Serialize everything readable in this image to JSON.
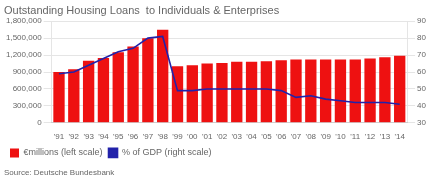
{
  "chart_data": {
    "type": "bar",
    "title": "Outstanding Housing Loans  to Individuals & Enterprises",
    "categories": [
      "'91",
      "'92",
      "'93",
      "'94",
      "'95",
      "'96",
      "'97",
      "'98",
      "'99",
      "'00",
      "'01",
      "'02",
      "'03",
      "'04",
      "'05",
      "'06",
      "'07",
      "'08",
      "'09",
      "'10",
      "'11",
      "'12",
      "'13",
      "'14"
    ],
    "series": [
      {
        "name": "€millions (left scale)",
        "type": "bar",
        "color": "#ee1111",
        "values": [
          900000,
          950000,
          1100000,
          1150000,
          1250000,
          1350000,
          1500000,
          1650000,
          1000000,
          1020000,
          1050000,
          1060000,
          1080000,
          1080000,
          1090000,
          1110000,
          1120000,
          1120000,
          1120000,
          1120000,
          1120000,
          1140000,
          1160000,
          1190000
        ]
      },
      {
        "name": "% of GDP (right scale)",
        "type": "line",
        "axis": "y2",
        "color": "#2222aa",
        "values": [
          59,
          60,
          64,
          68,
          72,
          74,
          80,
          81,
          49,
          49,
          50,
          50,
          50,
          50,
          50,
          49,
          45,
          46,
          44,
          43,
          42,
          42,
          42,
          41
        ]
      }
    ],
    "ylim": [
      0,
      1800000
    ],
    "yticks": [
      0,
      {
        "value": 300000,
        "label": "300,000"
      },
      {
        "value": 600000,
        "label": "600,000"
      },
      {
        "value": 900000,
        "label": "900,000"
      },
      {
        "value": 1200000,
        "label": "1,200,000"
      },
      {
        "value": 1500000,
        "label": "1,500,000"
      },
      {
        "value": 1800000,
        "label": "1,800,000"
      }
    ],
    "y2lim": [
      30,
      90
    ],
    "y2ticks": [
      30,
      40,
      50,
      60,
      70,
      80,
      90
    ],
    "grid": true,
    "legend": "bottom",
    "annotations": [
      "Source: Deutsche Bundesbank"
    ]
  }
}
